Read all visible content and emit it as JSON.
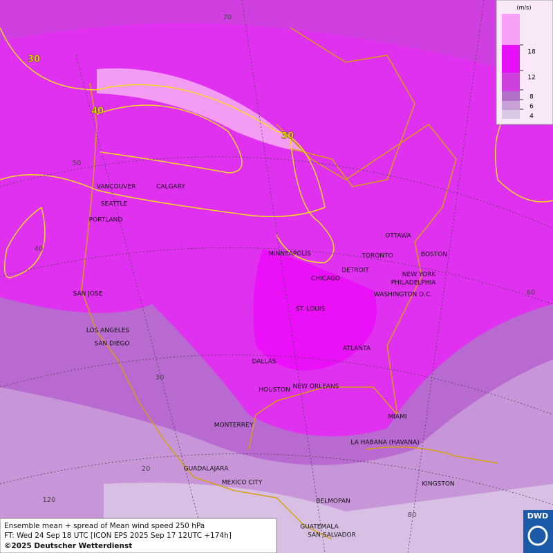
{
  "map": {
    "cities": [
      "VANCOUVER",
      "CALGARY",
      "SEATTLE",
      "PORTLAND",
      "MINNEAPOLIS",
      "OTTAWA",
      "TORONTO",
      "BOSTON",
      "DETROIT",
      "NEW YORK",
      "PHILADELPHIA",
      "CHICAGO",
      "WASHINGTON D.C.",
      "SAN JOSE",
      "ST. LOUIS",
      "LOS ANGELES",
      "SAN DIEGO",
      "ATLANTA",
      "DALLAS",
      "HOUSTON",
      "NEW ORLEANS",
      "MIAMI",
      "MONTERREY",
      "LA HABANA (HAVANA)",
      "GUADALAJARA",
      "MEXICO CITY",
      "KINGSTON",
      "BELMOPAN",
      "GUATEMALA",
      "SAN SALVADOR"
    ],
    "grid_labels": [
      70,
      50,
      40,
      60,
      30,
      20,
      120,
      80
    ],
    "contour_labels": [
      30,
      40,
      30
    ]
  },
  "legend": {
    "unit": "(m/s)",
    "ticks": [
      18,
      12,
      8,
      6,
      4
    ]
  },
  "caption": {
    "line1": "Ensemble mean + spread of Mean wind speed 250 hPa",
    "line2": "FT: Wed 24 Sep 18 UTC [ICON EPS 2025 Sep 17 12UTC +174h]",
    "line3": "©2025 Deutscher Wetterdienst"
  },
  "logo": "DWD"
}
